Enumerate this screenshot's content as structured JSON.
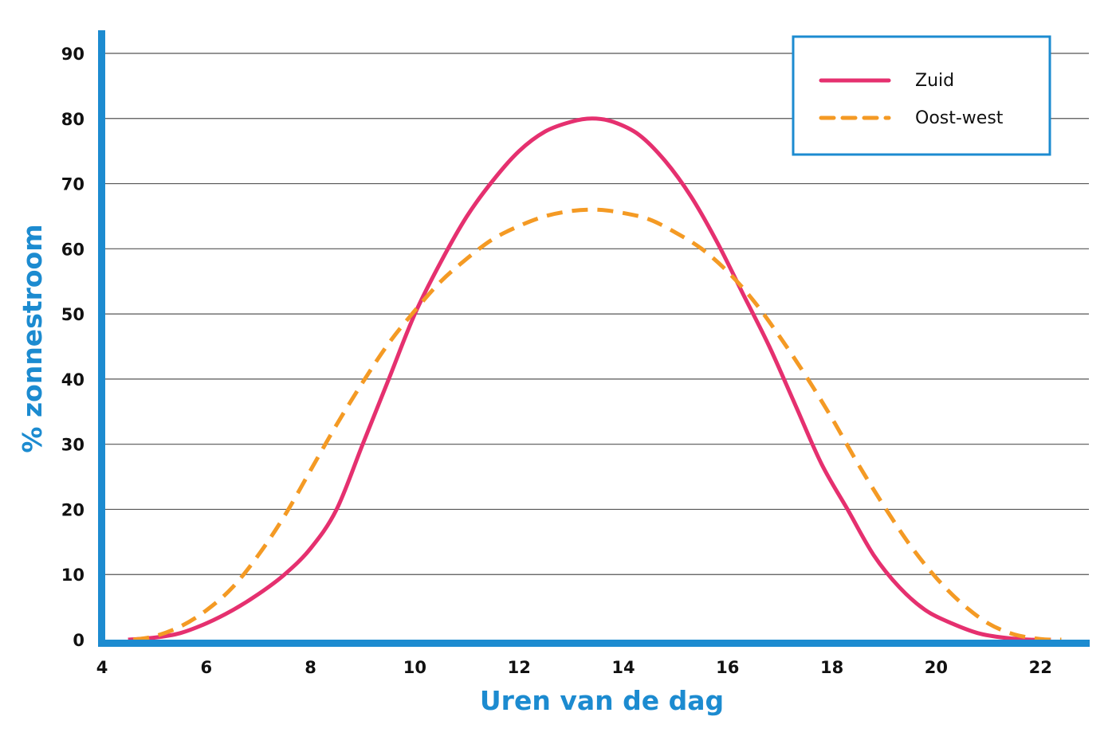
{
  "chart_data": {
    "type": "line",
    "title": "",
    "xlabel": "Uren van de dag",
    "ylabel": "% zonnestroom",
    "xlim": [
      4,
      23
    ],
    "ylim": [
      0,
      90
    ],
    "xticks": [
      4,
      6,
      8,
      10,
      12,
      14,
      16,
      18,
      20,
      22
    ],
    "yticks": [
      0,
      10,
      20,
      30,
      40,
      50,
      60,
      70,
      80,
      90
    ],
    "grid": "horizontal",
    "legend_position": "top-right",
    "series": [
      {
        "name": "Zuid",
        "color": "#e5306f",
        "dash": "solid",
        "x": [
          4.5,
          5.0,
          5.5,
          6.0,
          6.5,
          7.0,
          7.5,
          8.0,
          8.5,
          9.0,
          9.5,
          10.0,
          10.5,
          11.0,
          11.5,
          12.0,
          12.5,
          13.0,
          13.4,
          13.8,
          14.3,
          14.8,
          15.3,
          15.8,
          16.3,
          16.8,
          17.3,
          17.8,
          18.3,
          18.8,
          19.3,
          19.8,
          20.3,
          20.8,
          21.3,
          21.8,
          22.2
        ],
        "y": [
          0,
          0.3,
          1,
          2.5,
          4.5,
          7,
          10,
          14,
          20,
          30,
          40,
          50,
          58,
          65,
          70.5,
          75,
          78,
          79.5,
          80,
          79.5,
          77.5,
          73.5,
          68,
          61,
          53,
          45,
          36,
          27,
          20,
          13,
          8,
          4.5,
          2.5,
          1,
          0.3,
          0,
          0
        ]
      },
      {
        "name": "Oost-west",
        "color": "#f49a24",
        "dash": "dashed",
        "x": [
          4.6,
          5.0,
          5.5,
          6.0,
          6.5,
          7.0,
          7.5,
          8.0,
          8.5,
          9.0,
          9.5,
          10.0,
          10.5,
          11.0,
          11.5,
          12.0,
          12.5,
          13.0,
          13.5,
          14.0,
          14.5,
          15.0,
          15.5,
          16.0,
          16.5,
          17.0,
          17.5,
          18.0,
          18.5,
          19.0,
          19.5,
          20.0,
          20.5,
          21.0,
          21.5,
          22.0,
          22.4
        ],
        "y": [
          0,
          0.5,
          2,
          4.5,
          8,
          13,
          19,
          26,
          33,
          39.5,
          45.5,
          50.5,
          55,
          58.5,
          61.5,
          63.5,
          65,
          65.8,
          66,
          65.5,
          64.5,
          62.5,
          60,
          56.5,
          52,
          46.5,
          40.5,
          34,
          27,
          20.5,
          14.5,
          9.5,
          5.5,
          2.5,
          0.8,
          0.1,
          0
        ]
      }
    ]
  }
}
